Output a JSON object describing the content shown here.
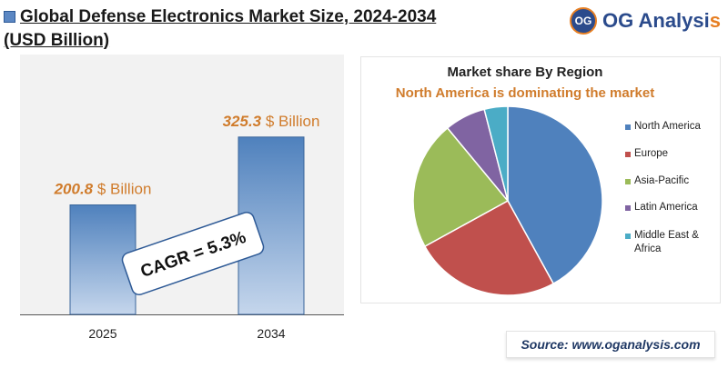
{
  "header": {
    "title_line1": "Global Defense Electronics Market Size, 2024-2034",
    "title_line2": "(USD Billion)"
  },
  "logo": {
    "badge": "OG",
    "name_main": "OG Analysi",
    "name_accent": "s"
  },
  "colors": {
    "bar_dark": "#4f81bd",
    "bar_light": "#c5d6ec",
    "value_orange": "#d07c2c",
    "pie": [
      "#4f81bd",
      "#c0504d",
      "#9bbb59",
      "#8064a2",
      "#4bacc6"
    ]
  },
  "cagr_label": "CAGR = 5.3%",
  "source": "Source: www.oganalysis.com",
  "chart_data": [
    {
      "type": "bar",
      "categories": [
        "2025",
        "2034"
      ],
      "values": [
        200.8,
        325.3
      ],
      "value_labels": [
        "200.8",
        "325.3"
      ],
      "unit_label": "$ Billion",
      "ylim": [
        0,
        400
      ],
      "grid": false
    },
    {
      "type": "pie",
      "title": "Market share By Region",
      "subtitle": "North America is dominating the market",
      "categories": [
        "North America",
        "Europe",
        "Asia-Pacific",
        "Latin America",
        "Middle East & Africa"
      ],
      "values": [
        42,
        25,
        22,
        7,
        4
      ],
      "legend_position": "right"
    }
  ]
}
